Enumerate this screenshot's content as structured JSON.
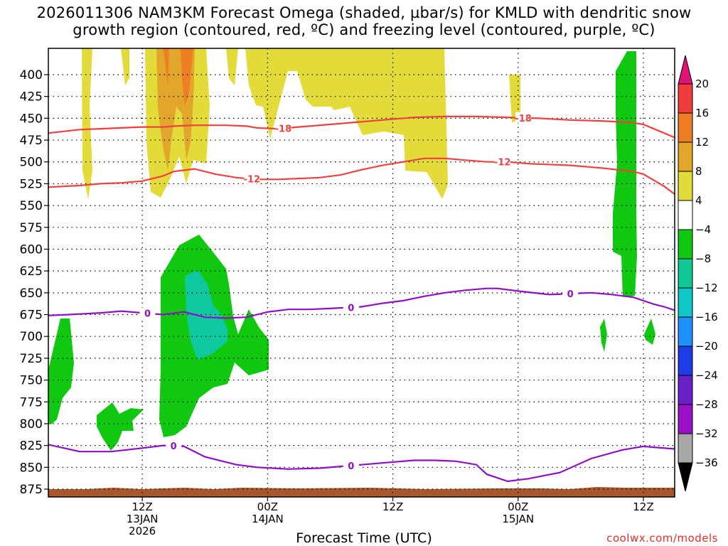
{
  "title_line1": "2026011306 NAM3KM Forecast Omega (shaded, µbar/s) for KMLD with dendritic snow",
  "title_line2": "growth region (contoured, red, ºC) and freezing level (contoured, purple, ºC)",
  "xlabel": "Forecast Time (UTC)",
  "credit": "coolwx.com/models",
  "chart_data": {
    "type": "heatmap",
    "title": "2026011306 NAM3KM Forecast Omega (shaded, µbar/s) for KMLD with dendritic snow growth region (contoured, red, ºC) and freezing level (contoured, purple, ºC)",
    "xlabel": "Forecast Time (UTC)",
    "x_range_hours": [
      3,
      63
    ],
    "y_range_mb": [
      380,
      880
    ],
    "y_scale": "reversed pressure",
    "y_ticks": [
      400,
      425,
      450,
      475,
      500,
      525,
      550,
      575,
      600,
      625,
      650,
      675,
      700,
      725,
      750,
      775,
      800,
      825,
      850,
      875
    ],
    "x_ticks": [
      {
        "hour": 12,
        "lines": [
          "12Z",
          "13JAN",
          "2026"
        ]
      },
      {
        "hour": 24,
        "lines": [
          "00Z",
          "14JAN"
        ]
      },
      {
        "hour": 36,
        "lines": [
          "12Z"
        ]
      },
      {
        "hour": 48,
        "lines": [
          "00Z",
          "15JAN"
        ]
      },
      {
        "hour": 60,
        "lines": [
          "12Z"
        ]
      }
    ],
    "colorbar": {
      "labels": [
        "20",
        "16",
        "12",
        "8",
        "4",
        "−4",
        "−8",
        "−12",
        "−16",
        "−20",
        "−24",
        "−28",
        "−32",
        "−36"
      ],
      "colors": [
        "#f03c3c",
        "#ee7e22",
        "#e2a62c",
        "#e3db3a",
        "#ffffff",
        "#10c810",
        "#10c896",
        "#10c8c8",
        "#1e90ff",
        "#1e3ce6",
        "#6a1ec8",
        "#9b10c8",
        "#a8a8a8"
      ],
      "top_arrow_color": "#e01278",
      "bottom_arrow_color": "#000000"
    },
    "contours": [
      {
        "label": "-18",
        "color": "#f04040",
        "points": [
          [
            3,
            467
          ],
          [
            6,
            463
          ],
          [
            8,
            462
          ],
          [
            10,
            461
          ],
          [
            12,
            460
          ],
          [
            14,
            460
          ],
          [
            15,
            459
          ],
          [
            17,
            458
          ],
          [
            20,
            458
          ],
          [
            22,
            459
          ],
          [
            23,
            461
          ],
          [
            25,
            462
          ],
          [
            27,
            460
          ],
          [
            30,
            457
          ],
          [
            32,
            455
          ],
          [
            35,
            452
          ],
          [
            38,
            449
          ],
          [
            41,
            448
          ],
          [
            44,
            448
          ],
          [
            47,
            449
          ],
          [
            50,
            450
          ],
          [
            53,
            452
          ],
          [
            56,
            453
          ],
          [
            59,
            455
          ],
          [
            60,
            457
          ],
          [
            62,
            467
          ],
          [
            63,
            472
          ]
        ]
      },
      {
        "label": "-12",
        "color": "#f04040",
        "points": [
          [
            3,
            529
          ],
          [
            6,
            527
          ],
          [
            8,
            525
          ],
          [
            10,
            524
          ],
          [
            12,
            522
          ],
          [
            14,
            516
          ],
          [
            15,
            511
          ],
          [
            17,
            508
          ],
          [
            19,
            514
          ],
          [
            21,
            518
          ],
          [
            23,
            520
          ],
          [
            25,
            520
          ],
          [
            27,
            519
          ],
          [
            29,
            518
          ],
          [
            31,
            515
          ],
          [
            33,
            509
          ],
          [
            35,
            504
          ],
          [
            37,
            500
          ],
          [
            39,
            496
          ],
          [
            41,
            496
          ],
          [
            43,
            498
          ],
          [
            45,
            500
          ],
          [
            47,
            500
          ],
          [
            49,
            502
          ],
          [
            53,
            504
          ],
          [
            56,
            507
          ],
          [
            59,
            511
          ],
          [
            60,
            514
          ],
          [
            62,
            528
          ],
          [
            63,
            537
          ]
        ]
      },
      {
        "label": "0",
        "color": "#9010c8",
        "points": [
          [
            3,
            676
          ],
          [
            5,
            675
          ],
          [
            8,
            673
          ],
          [
            10,
            671
          ],
          [
            12,
            673
          ],
          [
            14,
            675
          ],
          [
            16,
            672
          ],
          [
            18,
            678
          ],
          [
            20,
            679
          ],
          [
            22,
            678
          ],
          [
            24,
            672
          ],
          [
            26,
            669
          ],
          [
            28,
            669
          ],
          [
            30,
            668
          ],
          [
            33,
            666
          ],
          [
            35,
            662
          ],
          [
            37,
            659
          ],
          [
            39,
            654
          ],
          [
            41,
            650
          ],
          [
            43,
            647
          ],
          [
            45,
            645
          ],
          [
            46,
            645
          ],
          [
            48,
            648
          ],
          [
            51,
            652
          ],
          [
            53,
            651
          ],
          [
            55,
            650
          ],
          [
            57,
            652
          ],
          [
            59,
            655
          ],
          [
            61,
            663
          ],
          [
            62,
            666
          ],
          [
            63,
            670
          ]
        ]
      },
      {
        "label": "0",
        "color": "#9010c8",
        "points": [
          [
            3,
            824
          ],
          [
            6,
            832
          ],
          [
            9,
            832
          ],
          [
            12,
            828
          ],
          [
            14,
            825
          ],
          [
            16,
            826
          ],
          [
            18,
            838
          ],
          [
            21,
            847
          ],
          [
            23,
            850
          ],
          [
            26,
            852
          ],
          [
            29,
            851
          ],
          [
            32,
            848
          ],
          [
            35,
            845
          ],
          [
            38,
            842
          ],
          [
            40,
            842
          ],
          [
            42,
            843
          ],
          [
            44,
            847
          ],
          [
            45,
            858
          ],
          [
            47,
            866
          ],
          [
            49,
            863
          ],
          [
            52,
            856
          ],
          [
            55,
            840
          ],
          [
            58,
            830
          ],
          [
            60,
            826
          ],
          [
            63,
            829
          ]
        ]
      }
    ]
  }
}
